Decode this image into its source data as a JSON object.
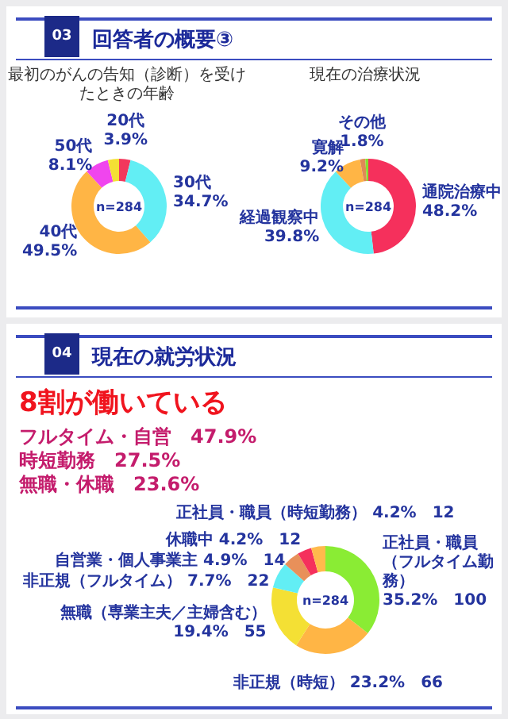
{
  "chart_data": [
    {
      "type": "donut",
      "title": "最初のがんの告知（診断）を受けたときの年齢",
      "categories": [
        "20代",
        "30代",
        "40代",
        "50代",
        null
      ],
      "values": [
        3.9,
        34.7,
        49.5,
        8.1,
        3.8
      ],
      "colors": [
        "#f2385c",
        "#62eef4",
        "#ffb545",
        "#f045ee",
        "#f4e034"
      ],
      "value_labels": [
        "3.9%",
        "34.7%",
        "49.5%",
        "8.1%",
        null
      ],
      "annotations": [
        "03",
        "回答者の概要③",
        "n=284"
      ]
    },
    {
      "type": "donut",
      "title": "現在の治療状況",
      "categories": [
        "通院治療中",
        "経過観察中",
        "寛解",
        "その他",
        null
      ],
      "values": [
        48.2,
        39.8,
        9.2,
        1.8,
        1.0
      ],
      "colors": [
        "#f5305c",
        "#62eef4",
        "#ffb545",
        "#e08a55",
        "#86e030"
      ],
      "value_labels": [
        "48.2%",
        "39.8%",
        "9.2%",
        "1.8%",
        null
      ],
      "annotations": [
        "n=284"
      ]
    },
    {
      "type": "donut",
      "categories": [
        "正社員・職員（フルタイム勤務）",
        "非正規（時短）",
        "無職（専業主夫／主婦含む）",
        "非正規（フルタイム）",
        "自営業・個人事業主",
        "休職中",
        "正社員・職員（時短勤務）"
      ],
      "values": [
        35.2,
        23.2,
        19.4,
        7.7,
        4.9,
        4.2,
        4.2
      ],
      "colors": [
        "#8aec34",
        "#ffb545",
        "#f4e034",
        "#62eef4",
        "#e8905a",
        "#f5305c",
        "#ffba4c"
      ],
      "value_labels": [
        "35.2%　100",
        "23.2%　66",
        "19.4%　55",
        "7.7%　22",
        "4.9%　14",
        "4.2%　12",
        "4.2%　12"
      ],
      "annotations": [
        "04",
        "現在の就労状況",
        "8割が働いている",
        "フルタイム・自営　47.9%",
        "時短勤務　27.5%",
        "無職・休職　23.6%",
        "n=284"
      ]
    }
  ]
}
